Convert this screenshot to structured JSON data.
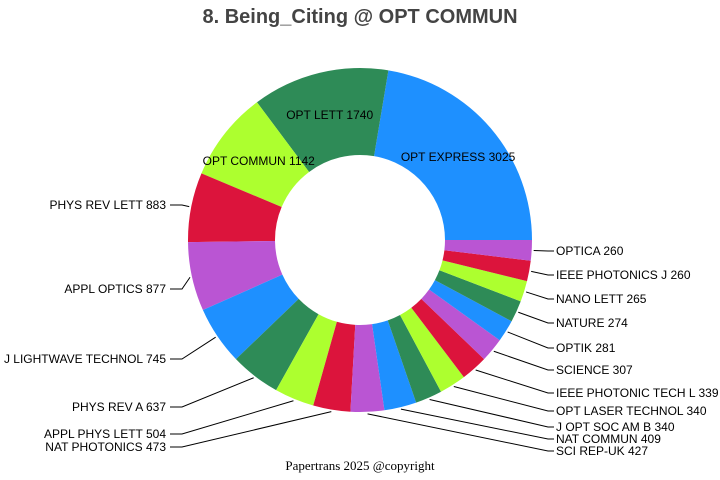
{
  "chart_data": {
    "type": "pie",
    "donut": true,
    "title": "8. Being_Citing @ OPT COMMUN",
    "footer": "Papertrans 2025 @copyright",
    "categories": [
      "OPT EXPRESS",
      "OPT LETT",
      "OPT COMMUN",
      "PHYS REV LETT",
      "APPL OPTICS",
      "J LIGHTWAVE TECHNOL",
      "PHYS REV A",
      "APPL PHYS LETT",
      "NAT PHOTONICS",
      "SCI REP-UK",
      "NAT COMMUN",
      "J OPT SOC AM B",
      "OPT LASER TECHNOL",
      "IEEE PHOTONIC TECH L",
      "SCIENCE",
      "OPTIK",
      "NATURE",
      "NANO LETT",
      "IEEE PHOTONICS J",
      "OPTICA"
    ],
    "values": [
      3025,
      1740,
      1142,
      883,
      877,
      745,
      637,
      504,
      473,
      427,
      409,
      340,
      340,
      339,
      307,
      281,
      274,
      265,
      260,
      260
    ],
    "labels": [
      "OPT EXPRESS 3025",
      "OPT LETT 1740",
      "OPT COMMUN 1142",
      "PHYS REV LETT 883",
      "APPL OPTICS 877",
      "J LIGHTWAVE TECHNOL 745",
      "PHYS REV A 637",
      "APPL PHYS LETT 504",
      "NAT PHOTONICS 473",
      "SCI REP-UK 427",
      "NAT COMMUN 409",
      "J OPT SOC AM B 340",
      "OPT LASER TECHNOL 340",
      "IEEE PHOTONIC TECH L 339",
      "SCIENCE 307",
      "OPTIK 281",
      "NATURE 274",
      "NANO LETT 265",
      "IEEE PHOTONICS J 260",
      "OPTICA 260"
    ],
    "colors": [
      "#1E90FF",
      "#2E8B57",
      "#ADFF2F",
      "#DC143C",
      "#BA55D3"
    ],
    "direction": "counterclockwise",
    "legend": "none"
  }
}
